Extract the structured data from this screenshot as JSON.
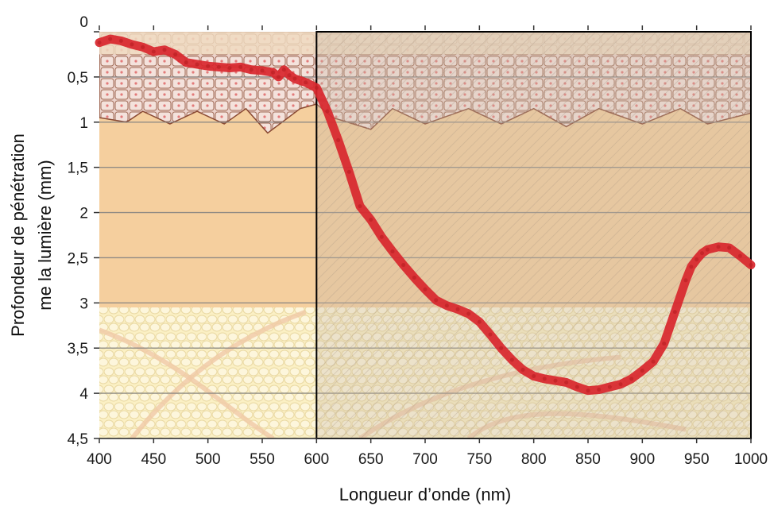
{
  "chart_data": {
    "type": "line",
    "title": "",
    "xlabel": "Longueur d’onde (nm)",
    "ylabel_lines": [
      "Profondeur de pénétration",
      "me la lumière (mm)"
    ],
    "xlim": [
      400,
      1000
    ],
    "ylim": [
      0,
      4.5
    ],
    "y_inverted": true,
    "x_ticks": [
      400,
      450,
      500,
      550,
      600,
      650,
      700,
      750,
      800,
      850,
      900,
      950,
      1000
    ],
    "x_tick_labels": [
      "400",
      "450",
      "500",
      "550",
      "600",
      "650",
      "700",
      "750",
      "800",
      "850",
      "900",
      "950",
      "1000"
    ],
    "y_ticks": [
      0,
      0.5,
      1,
      1.5,
      2,
      2.5,
      3,
      3.5,
      4,
      4.5
    ],
    "y_tick_labels": [
      "0",
      "0,5",
      "1",
      "1,5",
      "2",
      "2,5",
      "3",
      "3,5",
      "4",
      "4,5"
    ],
    "grid": true,
    "highlight_range_x": [
      600,
      1000
    ],
    "background_layers": [
      {
        "name": "epidermis",
        "y_range": [
          0,
          1.1
        ]
      },
      {
        "name": "dermis",
        "y_range": [
          0.3,
          3.05
        ]
      },
      {
        "name": "hypodermis",
        "y_range": [
          3.05,
          4.5
        ]
      }
    ],
    "colors": {
      "curve": "#d8262c",
      "dermis": "#f5cf9e",
      "hypodermis": "#fbf0c4",
      "epidermis_cells": "#ecd3cc",
      "cell_outline": "#8a4a33",
      "highlight_fill": "#c9b9a6",
      "grid": "#808080"
    },
    "series": [
      {
        "x": [
          400,
          410,
          420,
          430,
          440,
          450,
          460,
          470,
          480,
          490,
          500,
          510,
          520,
          530,
          540,
          550,
          560,
          565,
          570,
          575,
          580,
          590,
          600,
          610,
          620,
          630,
          640,
          650,
          660,
          670,
          680,
          690,
          700,
          710,
          720,
          730,
          740,
          750,
          760,
          770,
          780,
          790,
          800,
          810,
          820,
          830,
          840,
          850,
          860,
          870,
          880,
          890,
          900,
          910,
          920,
          930,
          940,
          945,
          950,
          955,
          960,
          970,
          980,
          990,
          1000
        ],
        "values": [
          0.12,
          0.08,
          0.1,
          0.14,
          0.17,
          0.22,
          0.2,
          0.25,
          0.34,
          0.36,
          0.38,
          0.39,
          0.4,
          0.39,
          0.42,
          0.43,
          0.45,
          0.5,
          0.42,
          0.48,
          0.52,
          0.56,
          0.62,
          0.88,
          1.2,
          1.55,
          1.93,
          2.08,
          2.27,
          2.43,
          2.58,
          2.72,
          2.85,
          2.97,
          3.03,
          3.07,
          3.12,
          3.21,
          3.35,
          3.5,
          3.63,
          3.74,
          3.81,
          3.84,
          3.86,
          3.88,
          3.93,
          3.97,
          3.96,
          3.93,
          3.9,
          3.84,
          3.75,
          3.65,
          3.45,
          3.1,
          2.75,
          2.6,
          2.52,
          2.45,
          2.41,
          2.38,
          2.39,
          2.48,
          2.58
        ]
      }
    ]
  }
}
